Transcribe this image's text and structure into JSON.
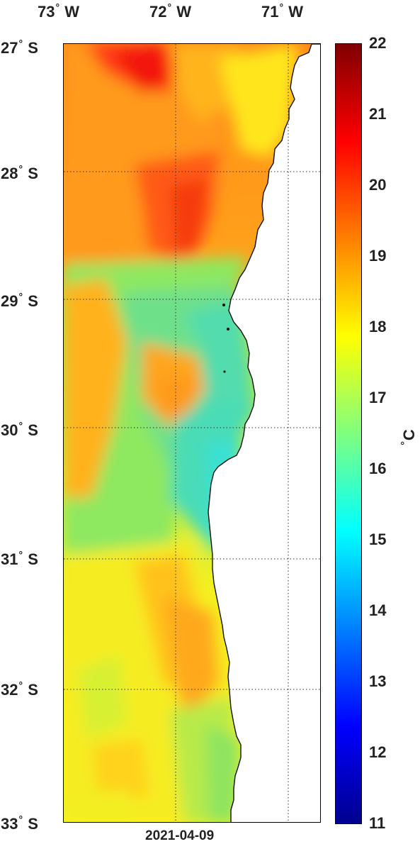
{
  "map": {
    "longitude_labels": [
      {
        "deg": "73",
        "hemi": "W"
      },
      {
        "deg": "72",
        "hemi": "W"
      },
      {
        "deg": "71",
        "hemi": "W"
      }
    ],
    "latitude_labels": [
      {
        "deg": "27",
        "hemi": "S"
      },
      {
        "deg": "28",
        "hemi": "S"
      },
      {
        "deg": "29",
        "hemi": "S"
      },
      {
        "deg": "30",
        "hemi": "S"
      },
      {
        "deg": "31",
        "hemi": "S"
      },
      {
        "deg": "32",
        "hemi": "S"
      },
      {
        "deg": "33",
        "hemi": "S"
      }
    ],
    "date": "2021-04-09",
    "land_color": "#ffffff",
    "gridlines": "dotted"
  },
  "colorbar": {
    "ticks": [
      "22",
      "21",
      "20",
      "19",
      "18",
      "17",
      "16",
      "15",
      "14",
      "13",
      "12",
      "11"
    ],
    "min": 11,
    "max": 22,
    "unit_deg": "°",
    "unit": "C",
    "colormap": "jet"
  }
}
